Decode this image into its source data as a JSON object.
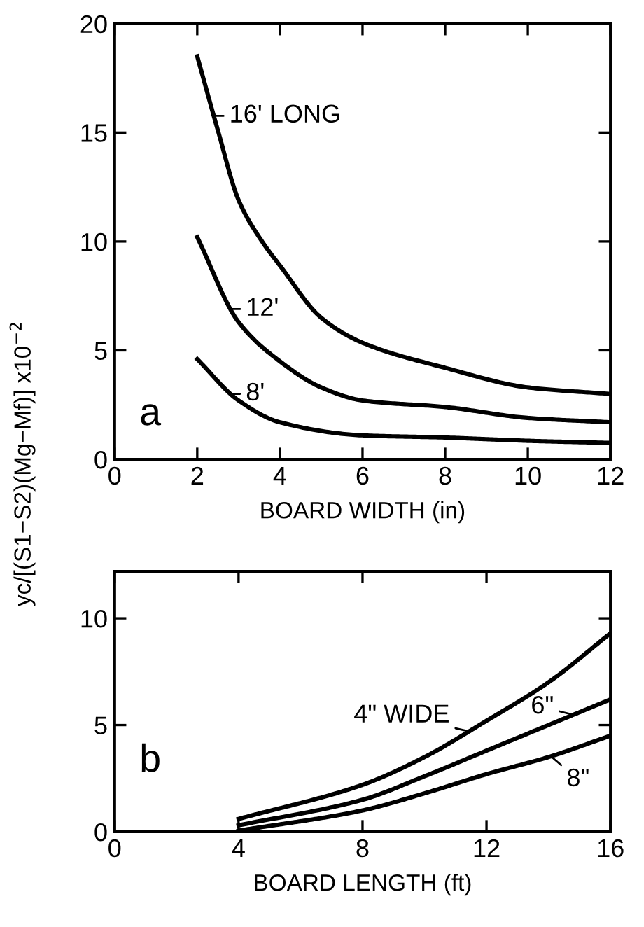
{
  "chart_data": [
    {
      "type": "line",
      "xlabel": "BOARD WIDTH (in)",
      "ylabel": "yc/[(S1−S2)(Mg−Mf)] x10$^{−2}$",
      "annotations": [
        "a"
      ],
      "xlim": [
        0,
        12
      ],
      "ylim": [
        0,
        20
      ],
      "xticks": [
        0,
        2,
        4,
        6,
        8,
        10,
        12
      ],
      "yticks": [
        0,
        5,
        10,
        15,
        20
      ],
      "grid": false,
      "legend": "left",
      "marker": "none",
      "line_style": "solid",
      "series": [
        {
          "name": "16' LONG",
          "color": "#000000",
          "x": [
            2,
            2.5,
            3,
            3.57,
            4,
            5,
            6,
            8,
            10,
            12
          ],
          "values": [
            18.5,
            15.1,
            11.9,
            10,
            8.9,
            6.5,
            5.35,
            4.2,
            3.3,
            3.0
          ]
        },
        {
          "name": "12'",
          "color": "#000000",
          "x": [
            2,
            3,
            4,
            5,
            6,
            8,
            10,
            12
          ],
          "values": [
            10.2,
            6.3,
            4.5,
            3.3,
            2.7,
            2.4,
            1.9,
            1.7
          ]
        },
        {
          "name": "8'",
          "color": "#000000",
          "x": [
            2,
            3,
            4,
            6,
            8,
            10,
            12
          ],
          "values": [
            4.6,
            2.7,
            1.7,
            1.1,
            1.0,
            0.85,
            0.75
          ]
        }
      ]
    },
    {
      "type": "line",
      "xlabel": "BOARD LENGTH (ft)",
      "annotations": [
        "b"
      ],
      "xlim": [
        0,
        16
      ],
      "ylim": [
        0,
        12.2
      ],
      "xticks": [
        0,
        4,
        8,
        12,
        16
      ],
      "yticks": [
        0,
        5,
        10
      ],
      "grid": false,
      "legend": "right",
      "marker": "none",
      "line_style": "solid",
      "series": [
        {
          "name": "4\" WIDE",
          "color": "#000000",
          "x": [
            4,
            8,
            10,
            12,
            14,
            16
          ],
          "values": [
            0.6,
            2.2,
            3.5,
            5.2,
            7.0,
            9.3
          ]
        },
        {
          "name": "6\"",
          "color": "#000000",
          "x": [
            4,
            8,
            10,
            12,
            14,
            16
          ],
          "values": [
            0.3,
            1.5,
            2.6,
            3.8,
            5.0,
            6.2
          ]
        },
        {
          "name": "8\"",
          "color": "#000000",
          "x": [
            4,
            8,
            10,
            12,
            14,
            16
          ],
          "values": [
            0.05,
            1.0,
            1.8,
            2.7,
            3.5,
            4.5
          ]
        }
      ]
    }
  ]
}
